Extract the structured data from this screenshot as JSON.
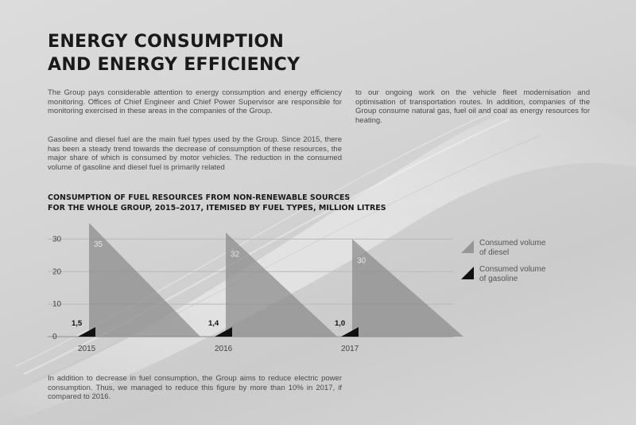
{
  "title_lines": [
    "ENERGY CONSUMPTION",
    "AND ENERGY EFFICIENCY"
  ],
  "paragraphs": {
    "p1": "The Group pays considerable attention to energy consumption and energy efficiency monitoring. Offices of Chief Engineer and Chief Power Supervisor are responsible for monitoring exercised in these areas in the companies of the Group.",
    "p2": "Gasoline and diesel fuel are the main fuel types used by the Group. Since 2015, there has been a steady trend towards the decrease of consumption of these resources, the major share of which is consumed by motor vehicles. The reduction in the consumed volume of gasoline and diesel fuel is primarily related",
    "p3": "to our ongoing work on the vehicle fleet modernisation and optimisation of transportation routes. In addition, companies of the Group consume natural gas, fuel oil and coal as energy resources for heating.",
    "p4": "In addition to decrease in fuel consumption, the Group aims to reduce electric power consumption. Thus, we managed to reduce this figure by more than 10% in 2017, if compared to 2016."
  },
  "chart_data": {
    "type": "area",
    "title_lines": [
      "CONSUMPTION OF FUEL RESOURCES FROM NON-RENEWABLE SOURCES",
      "FOR THE WHOLE GROUP, 2015–2017, ITEMISED BY FUEL TYPES, MILLION LITRES"
    ],
    "categories": [
      "2015",
      "2016",
      "2017"
    ],
    "series": [
      {
        "name": "Consumed volume of diesel",
        "values": [
          35,
          32,
          30
        ],
        "labels": [
          "35",
          "32",
          "30"
        ],
        "color": "#8a8a8a"
      },
      {
        "name": "Consumed volume of gasoline",
        "values": [
          1.5,
          1.4,
          1.0
        ],
        "labels": [
          "1,5",
          "1,4",
          "1,0"
        ],
        "color": "#111111"
      }
    ],
    "legend": [
      {
        "lines": [
          "Consumed volume",
          "of diesel"
        ],
        "color": "#8a8a8a"
      },
      {
        "lines": [
          "Consumed volume",
          "of gasoline"
        ],
        "color": "#111111"
      }
    ],
    "y_ticks": [
      0,
      10,
      20,
      30
    ],
    "y_tick_labels": [
      "0",
      "10",
      "20",
      "30"
    ],
    "ylim": [
      0,
      35
    ],
    "grid": true,
    "legend_position": "right"
  }
}
